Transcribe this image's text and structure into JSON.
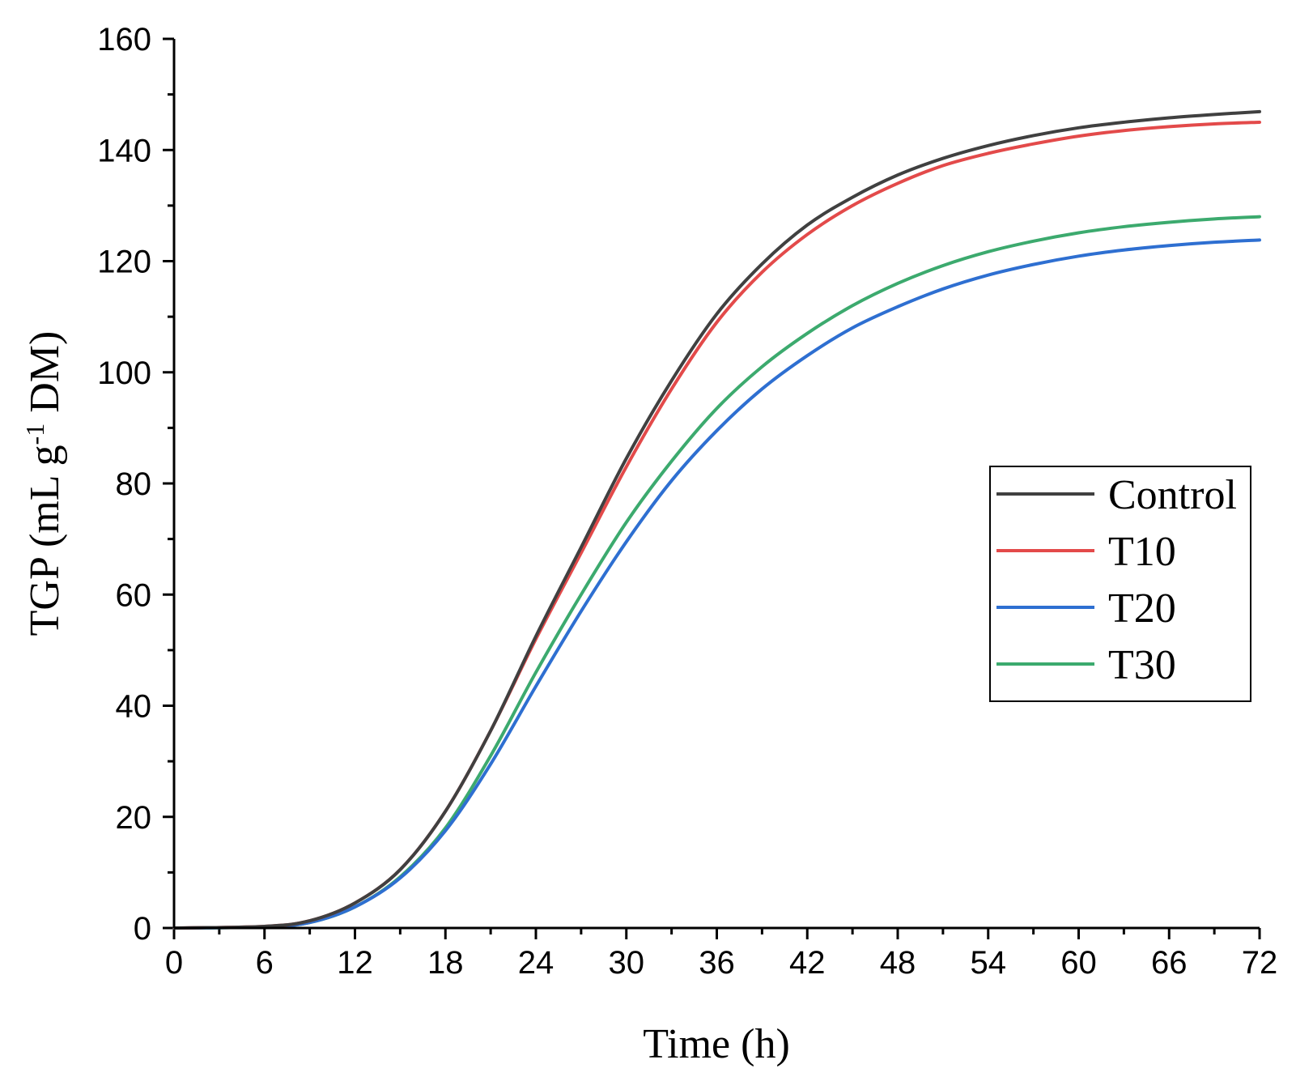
{
  "chart_data": {
    "type": "line",
    "title": "",
    "xlabel": "Time (h)",
    "ylabel": {
      "prefix": "TGP (mL g",
      "superscript": "-1",
      "suffix": " DM)"
    },
    "xlim": [
      0,
      72
    ],
    "ylim": [
      0,
      160
    ],
    "x_ticks": [
      0,
      6,
      12,
      18,
      24,
      30,
      36,
      42,
      48,
      54,
      60,
      66,
      72
    ],
    "y_ticks": [
      0,
      20,
      40,
      60,
      80,
      100,
      120,
      140,
      160
    ],
    "legend_position": "right-middle",
    "x": [
      0,
      6,
      9,
      12,
      15,
      18,
      21,
      24,
      27,
      30,
      33,
      36,
      39,
      42,
      45,
      48,
      51,
      54,
      57,
      60,
      63,
      66,
      69,
      72
    ],
    "series": [
      {
        "name": "Control",
        "color": "#404040",
        "values": [
          0,
          0.3,
          1.3,
          4.5,
          10.5,
          21,
          35.5,
          52.5,
          68.5,
          84.5,
          98.5,
          110.5,
          119.5,
          126.5,
          131.5,
          135.5,
          138.5,
          140.8,
          142.6,
          144,
          145,
          145.8,
          146.4,
          146.9
        ]
      },
      {
        "name": "T10",
        "color": "#e34a4a",
        "values": [
          0,
          0.3,
          1.3,
          4.5,
          10.5,
          21,
          35.5,
          52,
          67.5,
          83,
          97,
          109,
          118,
          124.8,
          130,
          134,
          137.2,
          139.4,
          141.1,
          142.5,
          143.5,
          144.2,
          144.7,
          145
        ]
      },
      {
        "name": "T20",
        "color": "#2e6fd1",
        "values": [
          0,
          0.2,
          1,
          3.8,
          9,
          17.5,
          29.5,
          43.5,
          57,
          69.5,
          80.5,
          89.5,
          97,
          103,
          108,
          111.8,
          115,
          117.5,
          119.4,
          120.9,
          122,
          122.8,
          123.4,
          123.8
        ]
      },
      {
        "name": "T30",
        "color": "#3caa6e",
        "values": [
          0,
          0.2,
          1,
          3.8,
          9.2,
          18,
          31,
          46,
          60,
          73,
          84,
          93.5,
          101,
          107,
          112,
          116,
          119.2,
          121.7,
          123.6,
          125.1,
          126.2,
          127,
          127.6,
          128
        ]
      }
    ]
  }
}
